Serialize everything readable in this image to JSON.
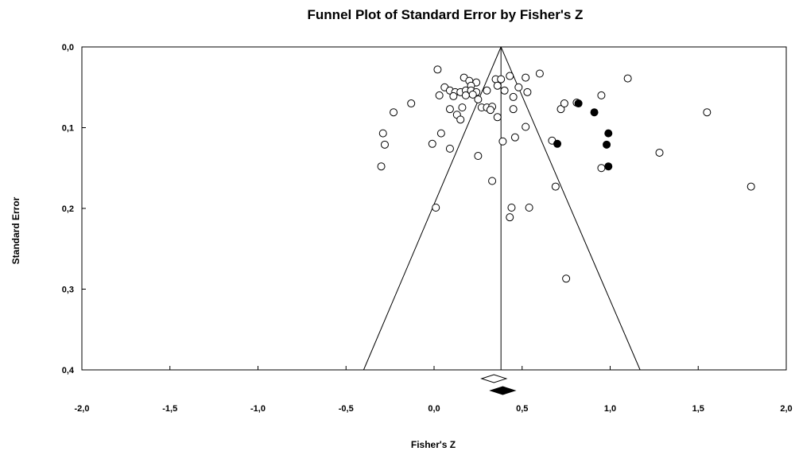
{
  "chart_data": {
    "type": "scatter",
    "title": "Funnel Plot of Standard Error by Fisher's Z",
    "xlabel": "Fisher's Z",
    "ylabel": "Standard Error",
    "xlim": [
      -2.0,
      2.0
    ],
    "ylim": [
      0.0,
      0.4
    ],
    "y_reversed": true,
    "grid": false,
    "x_ticks": [
      -2.0,
      -1.5,
      -1.0,
      -0.5,
      0.0,
      0.5,
      1.0,
      1.5,
      2.0
    ],
    "x_tick_labels": [
      "-2,0",
      "-1,5",
      "-1,0",
      "-0,5",
      "0,0",
      "0,5",
      "1,0",
      "1,5",
      "2,0"
    ],
    "y_ticks": [
      0.0,
      0.1,
      0.2,
      0.3,
      0.4
    ],
    "y_tick_labels": [
      "0,0",
      "0,1",
      "0,2",
      "0,3",
      "0,4"
    ],
    "funnel": {
      "center": 0.38,
      "bottom_left": -0.4,
      "bottom_right": 1.17,
      "bottom_se": 0.4
    },
    "series": [
      {
        "style": "open",
        "points": [
          [
            0.02,
            0.028
          ],
          [
            0.17,
            0.038
          ],
          [
            0.2,
            0.042
          ],
          [
            0.24,
            0.044
          ],
          [
            0.35,
            0.04
          ],
          [
            0.38,
            0.04
          ],
          [
            0.43,
            0.036
          ],
          [
            0.52,
            0.038
          ],
          [
            0.6,
            0.033
          ],
          [
            1.1,
            0.039
          ],
          [
            0.06,
            0.05
          ],
          [
            0.21,
            0.048
          ],
          [
            0.36,
            0.048
          ],
          [
            0.48,
            0.05
          ],
          [
            0.09,
            0.054
          ],
          [
            0.12,
            0.056
          ],
          [
            0.15,
            0.056
          ],
          [
            0.18,
            0.054
          ],
          [
            0.21,
            0.054
          ],
          [
            0.24,
            0.056
          ],
          [
            0.3,
            0.054
          ],
          [
            0.4,
            0.054
          ],
          [
            0.53,
            0.056
          ],
          [
            0.03,
            0.06
          ],
          [
            0.11,
            0.061
          ],
          [
            0.18,
            0.06
          ],
          [
            0.22,
            0.059
          ],
          [
            0.25,
            0.065
          ],
          [
            0.45,
            0.062
          ],
          [
            0.95,
            0.06
          ],
          [
            -0.13,
            0.07
          ],
          [
            0.16,
            0.075
          ],
          [
            0.27,
            0.075
          ],
          [
            0.3,
            0.075
          ],
          [
            0.33,
            0.074
          ],
          [
            0.09,
            0.077
          ],
          [
            0.32,
            0.078
          ],
          [
            0.45,
            0.077
          ],
          [
            0.72,
            0.077
          ],
          [
            0.74,
            0.07
          ],
          [
            0.81,
            0.069
          ],
          [
            -0.23,
            0.081
          ],
          [
            0.13,
            0.084
          ],
          [
            0.15,
            0.09
          ],
          [
            0.36,
            0.087
          ],
          [
            1.55,
            0.081
          ],
          [
            0.52,
            0.099
          ],
          [
            -0.29,
            0.107
          ],
          [
            0.04,
            0.107
          ],
          [
            0.46,
            0.112
          ],
          [
            0.67,
            0.116
          ],
          [
            -0.28,
            0.121
          ],
          [
            -0.01,
            0.12
          ],
          [
            0.39,
            0.117
          ],
          [
            0.09,
            0.126
          ],
          [
            1.28,
            0.131
          ],
          [
            0.25,
            0.135
          ],
          [
            -0.3,
            0.148
          ],
          [
            0.95,
            0.15
          ],
          [
            0.33,
            0.166
          ],
          [
            0.69,
            0.173
          ],
          [
            1.8,
            0.173
          ],
          [
            0.01,
            0.199
          ],
          [
            0.44,
            0.199
          ],
          [
            0.54,
            0.199
          ],
          [
            0.43,
            0.211
          ],
          [
            0.75,
            0.287
          ]
        ]
      },
      {
        "style": "filled",
        "points": [
          [
            0.82,
            0.07
          ],
          [
            0.91,
            0.081
          ],
          [
            0.99,
            0.107
          ],
          [
            0.7,
            0.12
          ],
          [
            0.98,
            0.121
          ],
          [
            0.99,
            0.148
          ]
        ]
      }
    ],
    "summary_diamonds": [
      {
        "style": "open",
        "center": 0.34,
        "low": 0.27,
        "high": 0.41
      },
      {
        "style": "filled",
        "center": 0.39,
        "low": 0.32,
        "high": 0.46
      }
    ]
  }
}
